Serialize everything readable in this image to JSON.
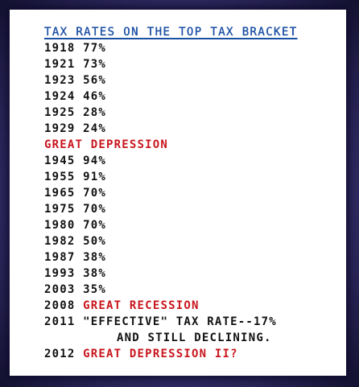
{
  "title": "TAX RATES ON THE TOP TAX BRACKET",
  "rows_before": [
    {
      "year": "1918",
      "rate": "77%"
    },
    {
      "year": "1921",
      "rate": "73%"
    },
    {
      "year": "1923",
      "rate": "56%"
    },
    {
      "year": "1924",
      "rate": "46%"
    },
    {
      "year": "1925",
      "rate": "28%"
    },
    {
      "year": "1929",
      "rate": "24%"
    }
  ],
  "event_depression": "GREAT DEPRESSION",
  "rows_after": [
    {
      "year": "1945",
      "rate": "94%"
    },
    {
      "year": "1955",
      "rate": "91%"
    },
    {
      "year": "1965",
      "rate": "70%"
    },
    {
      "year": "1975",
      "rate": "70%"
    },
    {
      "year": "1980",
      "rate": "70%"
    },
    {
      "year": "1982",
      "rate": "50%"
    },
    {
      "year": "1987",
      "rate": "38%"
    },
    {
      "year": "1993",
      "rate": "38%"
    },
    {
      "year": "2003",
      "rate": "35%"
    }
  ],
  "row_2008": {
    "year": "2008",
    "event": "GREAT RECESSION"
  },
  "row_2011": {
    "year": "2011",
    "text_line1": "\"EFFECTIVE\" TAX RATE--17%",
    "text_line2": "AND STILL DECLINING."
  },
  "row_2012": {
    "year": "2012",
    "event": "GREAT DEPRESSION II?"
  },
  "colors": {
    "title": "#1b4fa3",
    "event_red": "#c8161d",
    "text": "#111111",
    "frame": "#3c3577"
  }
}
